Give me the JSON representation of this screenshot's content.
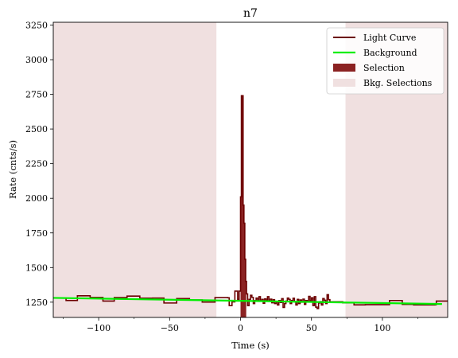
{
  "chart_data": {
    "type": "line",
    "title": "n7",
    "xlabel": "Time (s)",
    "ylabel": "Rate (cnts/s)",
    "xlim": [
      -132,
      146
    ],
    "ylim": [
      1140,
      3270
    ],
    "x_ticks": [
      -100,
      -50,
      0,
      50,
      100
    ],
    "y_ticks": [
      1250,
      1500,
      1750,
      2000,
      2250,
      2500,
      2750,
      3000,
      3250
    ],
    "grid": false,
    "legend_position": "top-right",
    "legend": [
      "Light Curve",
      "Background",
      "Selection",
      "Bkg. Selections"
    ],
    "colors": {
      "light_curve": "#6b0000",
      "background": "#00ee00",
      "selection": "#8b2222",
      "bkg_selection": "#f0e0e0"
    },
    "light_curve_steps": [
      [
        -132,
        1280
      ],
      [
        -123,
        1262
      ],
      [
        -115,
        1296
      ],
      [
        -106,
        1284
      ],
      [
        -97,
        1258
      ],
      [
        -89,
        1283
      ],
      [
        -80,
        1294
      ],
      [
        -71,
        1279
      ],
      [
        -62,
        1280
      ],
      [
        -54,
        1244
      ],
      [
        -45,
        1276
      ],
      [
        -36,
        1266
      ],
      [
        -27,
        1251
      ],
      [
        -18,
        1283
      ],
      [
        -9,
        1282
      ],
      [
        -8,
        1226
      ],
      [
        -6,
        1252
      ],
      [
        -4,
        1330
      ],
      [
        -2,
        1270
      ],
      [
        -1,
        1330
      ],
      [
        0,
        2010
      ],
      [
        0.6,
        2740
      ],
      [
        1.8,
        1950
      ],
      [
        2.4,
        1820
      ],
      [
        3,
        1560
      ],
      [
        3.6,
        1400
      ],
      [
        4.2,
        1310
      ],
      [
        5,
        1225
      ],
      [
        6,
        1270
      ],
      [
        7,
        1300
      ],
      [
        8,
        1285
      ],
      [
        9,
        1240
      ],
      [
        10,
        1262
      ],
      [
        11,
        1280
      ],
      [
        12,
        1262
      ],
      [
        13,
        1290
      ],
      [
        14,
        1260
      ],
      [
        15,
        1270
      ],
      [
        16,
        1242
      ],
      [
        17,
        1274
      ],
      [
        18,
        1264
      ],
      [
        19,
        1290
      ],
      [
        20,
        1262
      ],
      [
        21,
        1272
      ],
      [
        22,
        1246
      ],
      [
        23,
        1268
      ],
      [
        24,
        1240
      ],
      [
        25,
        1254
      ],
      [
        26,
        1230
      ],
      [
        27,
        1262
      ],
      [
        28,
        1248
      ],
      [
        29,
        1275
      ],
      [
        30,
        1212
      ],
      [
        31,
        1240
      ],
      [
        32,
        1258
      ],
      [
        33,
        1280
      ],
      [
        34,
        1270
      ],
      [
        35,
        1240
      ],
      [
        36,
        1262
      ],
      [
        37,
        1278
      ],
      [
        38,
        1252
      ],
      [
        39,
        1230
      ],
      [
        40,
        1270
      ],
      [
        41,
        1240
      ],
      [
        42,
        1266
      ],
      [
        43,
        1250
      ],
      [
        44,
        1272
      ],
      [
        45,
        1234
      ],
      [
        46,
        1262
      ],
      [
        47,
        1254
      ],
      [
        48,
        1292
      ],
      [
        49,
        1262
      ],
      [
        50,
        1282
      ],
      [
        51,
        1226
      ],
      [
        52,
        1290
      ],
      [
        53,
        1214
      ],
      [
        54,
        1204
      ],
      [
        55,
        1244
      ],
      [
        56,
        1254
      ],
      [
        57,
        1230
      ],
      [
        58,
        1276
      ],
      [
        59,
        1264
      ],
      [
        60,
        1240
      ],
      [
        61,
        1304
      ],
      [
        62,
        1268
      ],
      [
        63,
        1253
      ],
      [
        72,
        1246
      ],
      [
        80,
        1231
      ],
      [
        88,
        1232
      ],
      [
        97,
        1232
      ],
      [
        105,
        1262
      ],
      [
        114,
        1234
      ],
      [
        122,
        1231
      ],
      [
        131,
        1231
      ],
      [
        137,
        1232
      ],
      [
        138,
        1258
      ],
      [
        146,
        1258
      ]
    ],
    "background_line": {
      "x": [
        -132,
        142
      ],
      "y": [
        1281,
        1237
      ]
    },
    "selection_range": [
      0,
      4
    ],
    "bkg_selection_ranges": [
      [
        -132,
        -17
      ],
      [
        74,
        146
      ]
    ]
  }
}
